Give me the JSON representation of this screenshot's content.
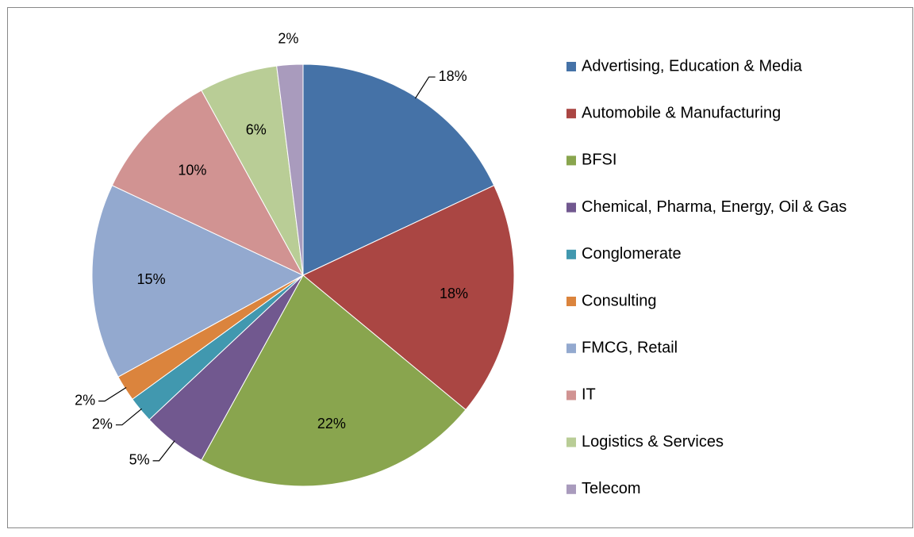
{
  "chart_data": {
    "type": "pie",
    "categories": [
      "Advertising, Education & Media",
      "Automobile & Manufacturing",
      "BFSI",
      "Chemical, Pharma, Energy, Oil & Gas",
      "Conglomerate",
      "Consulting",
      "FMCG, Retail",
      "IT",
      "Logistics & Services",
      "Telecom"
    ],
    "values": [
      18,
      18,
      22,
      5,
      2,
      2,
      15,
      10,
      6,
      2
    ],
    "value_labels": [
      "18%",
      "18%",
      "22%",
      "5%",
      "2%",
      "2%",
      "15%",
      "10%",
      "6%",
      "2%"
    ],
    "colors": [
      "#4572a7",
      "#aa4643",
      "#89a54e",
      "#71588f",
      "#4198af",
      "#db843d",
      "#93a9cf",
      "#d19392",
      "#b9cd96",
      "#a99bbd"
    ],
    "legend": "right"
  }
}
